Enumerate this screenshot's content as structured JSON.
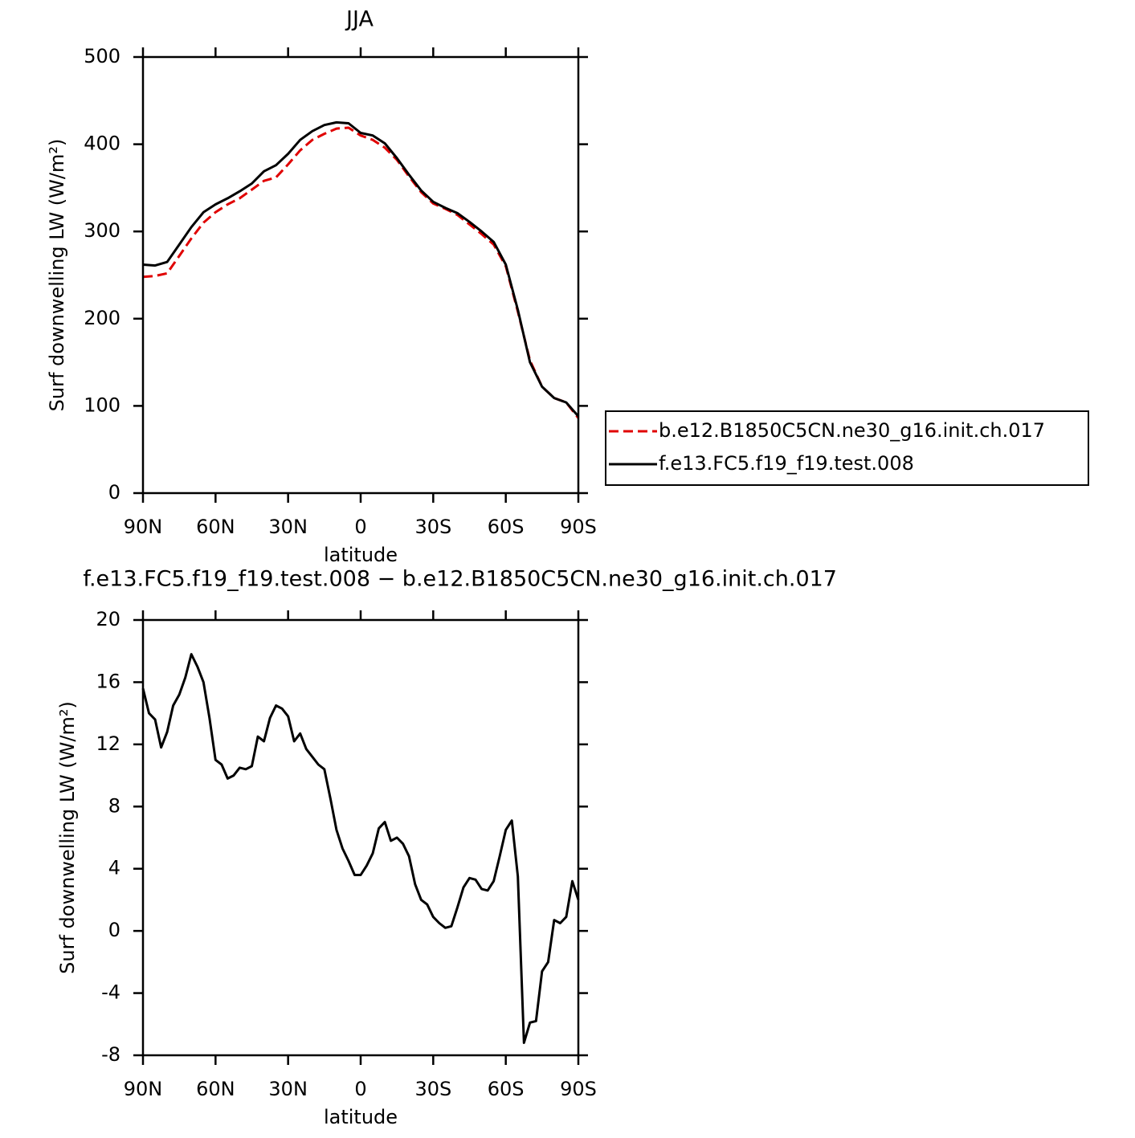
{
  "chart_data": [
    {
      "type": "line",
      "title": "JJA",
      "x_label": "latitude",
      "y_label": "Surf downwelling LW (W/m²)",
      "x": [
        90,
        85,
        80,
        75,
        70,
        65,
        60,
        55,
        50,
        45,
        40,
        35,
        30,
        25,
        20,
        15,
        10,
        5,
        0,
        -5,
        -10,
        -15,
        -20,
        -25,
        -30,
        -35,
        -40,
        -45,
        -50,
        -55,
        -60,
        -65,
        -70,
        -75,
        -80,
        -85,
        -90
      ],
      "series": [
        {
          "name": "b.e12.B1850C5CN.ne30_g16.init.ch.017",
          "color": "#e00000",
          "dash": true,
          "values": [
            248,
            249,
            252,
            272,
            292,
            310,
            322,
            331,
            338,
            348,
            358,
            362,
            377,
            393,
            405,
            412,
            418,
            419,
            410,
            405,
            396,
            382,
            363,
            345,
            332,
            326,
            319,
            308,
            297,
            285,
            260,
            208,
            152,
            122,
            109,
            104,
            86
          ]
        },
        {
          "name": "f.e13.FC5.f19_f19.test.008",
          "color": "#000000",
          "dash": false,
          "values": [
            262,
            261,
            265,
            285,
            305,
            322,
            331,
            338,
            346,
            355,
            369,
            376,
            389,
            405,
            415,
            422,
            425,
            424,
            413,
            410,
            401,
            384,
            365,
            347,
            334,
            327,
            321,
            311,
            300,
            288,
            262,
            210,
            150,
            122,
            109,
            104,
            88
          ]
        }
      ],
      "xlim": [
        90,
        -90
      ],
      "xticks": [
        {
          "value": 90,
          "label": "90N"
        },
        {
          "value": 60,
          "label": "60N"
        },
        {
          "value": 30,
          "label": "30N"
        },
        0,
        {
          "value": -30,
          "label": "30S"
        },
        {
          "value": -60,
          "label": "60S"
        },
        {
          "value": -90,
          "label": "90S"
        }
      ],
      "ylim": [
        0,
        500
      ],
      "yticks": [
        0,
        100,
        200,
        300,
        400,
        500
      ],
      "legend": "right"
    },
    {
      "type": "line",
      "title": "f.e13.FC5.f19_f19.test.008 − b.e12.B1850C5CN.ne30_g16.init.ch.017",
      "x_label": "latitude",
      "y_label": "Surf downwelling LW (W/m²)",
      "x": [
        90,
        87.5,
        85,
        82.5,
        80,
        77.5,
        75,
        72.5,
        70,
        67.5,
        65,
        62.5,
        60,
        57.5,
        55,
        52.5,
        50,
        47.5,
        45,
        42.5,
        40,
        37.5,
        35,
        32.5,
        30,
        27.5,
        25,
        22.5,
        20,
        17.5,
        15,
        12.5,
        10,
        7.5,
        5,
        2.5,
        0,
        -2.5,
        -5,
        -7.5,
        -10,
        -12.5,
        -15,
        -17.5,
        -20,
        -22.5,
        -25,
        -27.5,
        -30,
        -32.5,
        -35,
        -37.5,
        -40,
        -42.5,
        -45,
        -47.5,
        -50,
        -52.5,
        -55,
        -57.5,
        -60,
        -62.5,
        -65,
        -67.5,
        -70,
        -72.5,
        -75,
        -77.5,
        -80,
        -82.5,
        -85,
        -87.5,
        -90
      ],
      "series": [
        {
          "name": null,
          "color": "#000000",
          "dash": false,
          "values": [
            15.6,
            14.0,
            13.6,
            11.8,
            12.8,
            14.5,
            15.2,
            16.3,
            17.8,
            17.0,
            16.0,
            13.7,
            11.0,
            10.7,
            9.8,
            10.0,
            10.5,
            10.4,
            10.6,
            12.5,
            12.2,
            13.7,
            14.5,
            14.3,
            13.8,
            12.2,
            12.7,
            11.7,
            11.2,
            10.7,
            10.4,
            8.5,
            6.5,
            5.3,
            4.5,
            3.6,
            3.6,
            4.2,
            5.0,
            6.6,
            7.0,
            5.8,
            6.0,
            5.6,
            4.8,
            3.0,
            2.0,
            1.7,
            0.9,
            0.5,
            0.2,
            0.3,
            1.5,
            2.8,
            3.4,
            3.3,
            2.7,
            2.6,
            3.2,
            4.8,
            6.5,
            7.1,
            3.5,
            -7.2,
            -5.9,
            -5.8,
            -2.6,
            -2.0,
            0.7,
            0.5,
            0.9,
            3.2,
            2.0
          ]
        }
      ],
      "xlim": [
        90,
        -90
      ],
      "xticks": [
        {
          "value": 90,
          "label": "90N"
        },
        {
          "value": 60,
          "label": "60N"
        },
        {
          "value": 30,
          "label": "30N"
        },
        0,
        {
          "value": -30,
          "label": "30S"
        },
        {
          "value": -60,
          "label": "60S"
        },
        {
          "value": -90,
          "label": "90S"
        }
      ],
      "ylim": [
        -8,
        20
      ],
      "yticks": [
        -8,
        -4,
        0,
        4,
        8,
        12,
        16,
        20
      ]
    }
  ]
}
